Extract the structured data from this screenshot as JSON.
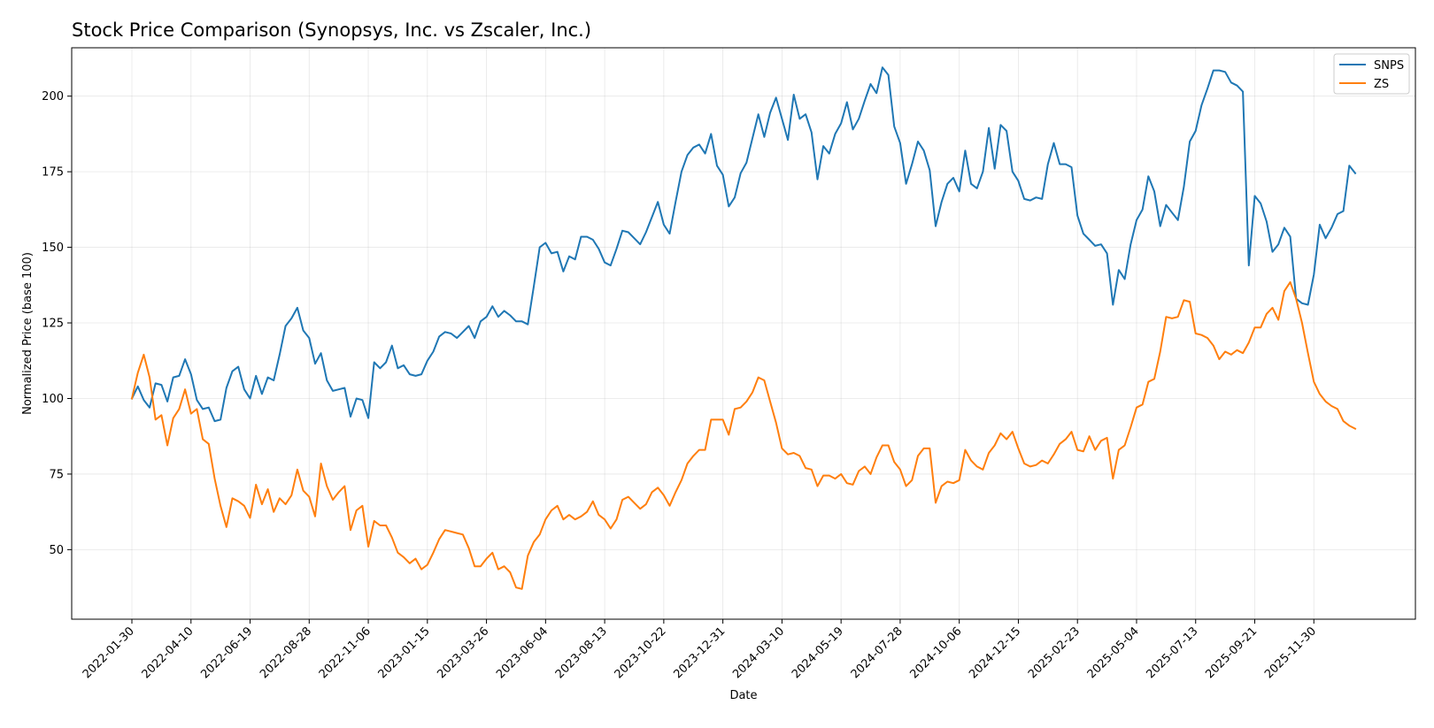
{
  "chart_data": {
    "type": "line",
    "title": "Stock Price Comparison (Synopsys, Inc. vs Zscaler, Inc.)",
    "xlabel": "Date",
    "ylabel": "Normalized Price (base 100)",
    "ylim": [
      27,
      216
    ],
    "yticks": [
      50,
      75,
      100,
      125,
      150,
      175,
      200
    ],
    "x_start": "2022-01-30",
    "x_end": "2026-01-18",
    "xticks": [
      "2022-01-30",
      "2022-04-10",
      "2022-06-19",
      "2022-08-28",
      "2022-11-06",
      "2023-01-15",
      "2023-03-26",
      "2023-06-04",
      "2023-08-13",
      "2023-10-22",
      "2023-12-31",
      "2024-03-10",
      "2024-05-19",
      "2024-07-28",
      "2024-10-06",
      "2024-12-15",
      "2025-02-23",
      "2025-05-04",
      "2025-07-13",
      "2025-09-21",
      "2025-11-30"
    ],
    "grid": true,
    "legend_position": "top-right",
    "series": [
      {
        "name": "SNPS",
        "color": "#1f77b4",
        "values": [
          100,
          104,
          99.5,
          97,
          105,
          104.5,
          99,
          107,
          107.5,
          113,
          108,
          99.5,
          96.5,
          97,
          92.5,
          93,
          103.5,
          109,
          110.5,
          103,
          100,
          107.5,
          101.5,
          107,
          106,
          114.5,
          124,
          126.5,
          130,
          122.5,
          120,
          111.5,
          115,
          106,
          102.5,
          103,
          103.5,
          94,
          100,
          99.5,
          93.5,
          112,
          110,
          112,
          117.5,
          110,
          111,
          108,
          107.5,
          108,
          112.5,
          115.5,
          120.5,
          122,
          121.5,
          120,
          122,
          124,
          120,
          125.5,
          127,
          130.5,
          127,
          129,
          127.5,
          125.5,
          125.5,
          124.5,
          137,
          150,
          151.5,
          148,
          148.5,
          142,
          147,
          146,
          153.5,
          153.5,
          152.5,
          149.5,
          145,
          144,
          149.5,
          155.5,
          155,
          153,
          151,
          155,
          160,
          165,
          157.5,
          154.5,
          165,
          175,
          180.5,
          183,
          184,
          181,
          187.5,
          177,
          174,
          163.5,
          166.5,
          174.5,
          178,
          186,
          194,
          186.5,
          194.5,
          199.5,
          192.5,
          185.5,
          200.5,
          192.5,
          194,
          188,
          172.5,
          183.5,
          181,
          187.5,
          191,
          198,
          189,
          192.5,
          198.5,
          204,
          201,
          209.5,
          207,
          190,
          184.5,
          171,
          177.5,
          185,
          182,
          175.5,
          157,
          165,
          171,
          173,
          168.5,
          182,
          171,
          169.5,
          175,
          189.5,
          176,
          190.5,
          188.5,
          175,
          172,
          166,
          165.5,
          166.5,
          166,
          177.5,
          184.5,
          177.5,
          177.5,
          176.5,
          160.5,
          154.5,
          152.5,
          150.5,
          151,
          148,
          131,
          142.5,
          139.5,
          151,
          159,
          162.5,
          173.5,
          168.5,
          157,
          164,
          161.5,
          159,
          170,
          185,
          188.5,
          197,
          202.5,
          208.5,
          208.5,
          208,
          204.5,
          203.5,
          201.5,
          144,
          167,
          164.5,
          158.5,
          148.5,
          151,
          156.5,
          153.5,
          133,
          131.5,
          131,
          141,
          157.5,
          153,
          156.5,
          161,
          162,
          177,
          174.5
        ]
      },
      {
        "name": "ZS",
        "color": "#ff7f0e",
        "values": [
          100,
          108.5,
          114.5,
          107,
          93,
          94.5,
          84.5,
          93.5,
          96.5,
          103,
          95,
          96.5,
          86.5,
          85,
          73.5,
          64.5,
          57.5,
          67,
          66,
          64.5,
          60.5,
          71.5,
          65,
          70,
          62.5,
          67,
          65,
          68,
          76.5,
          69.5,
          67.5,
          61,
          78.5,
          71,
          66.5,
          69,
          71,
          56.5,
          63,
          64.5,
          51,
          59.5,
          58,
          58,
          54,
          49,
          47.5,
          45.5,
          47,
          43.5,
          45,
          49,
          53.5,
          56.5,
          56,
          55.5,
          55,
          50.5,
          44.5,
          44.5,
          47,
          49,
          43.5,
          44.5,
          42.5,
          37.5,
          37,
          48,
          52.5,
          55,
          60,
          63,
          64.5,
          60,
          61.5,
          60,
          61,
          62.5,
          66,
          61.5,
          60,
          57,
          60,
          66.5,
          67.5,
          65.5,
          63.5,
          65,
          69,
          70.5,
          68,
          64.5,
          69,
          73,
          78.5,
          81,
          83,
          83,
          93,
          93,
          93,
          88,
          96.5,
          97,
          99,
          102,
          107,
          106,
          99,
          92,
          83.5,
          81.5,
          82,
          81,
          77,
          76.5,
          71,
          74.5,
          74.5,
          73.5,
          75,
          72,
          71.5,
          76,
          77.5,
          75,
          80.5,
          84.5,
          84.5,
          79,
          76.5,
          71,
          73,
          81,
          83.5,
          83.5,
          65.5,
          71,
          72.5,
          72,
          73,
          83,
          79.5,
          77.5,
          76.5,
          82,
          84.5,
          88.5,
          86.5,
          89,
          83.5,
          78.5,
          77.5,
          78,
          79.5,
          78.5,
          81.5,
          85,
          86.5,
          89,
          83,
          82.5,
          87.5,
          83,
          86,
          87,
          73.5,
          83,
          84.5,
          90.5,
          97,
          98,
          105.5,
          106.5,
          115.5,
          127,
          126.5,
          127,
          132.5,
          132,
          121.5,
          121,
          120,
          117.5,
          113,
          115.5,
          114.5,
          116,
          115,
          118.5,
          123.5,
          123.5,
          128,
          130,
          126,
          135.5,
          138.5,
          133,
          125,
          115,
          105.5,
          101.5,
          99,
          97.5,
          96.5,
          92.5,
          91,
          90
        ]
      }
    ]
  }
}
